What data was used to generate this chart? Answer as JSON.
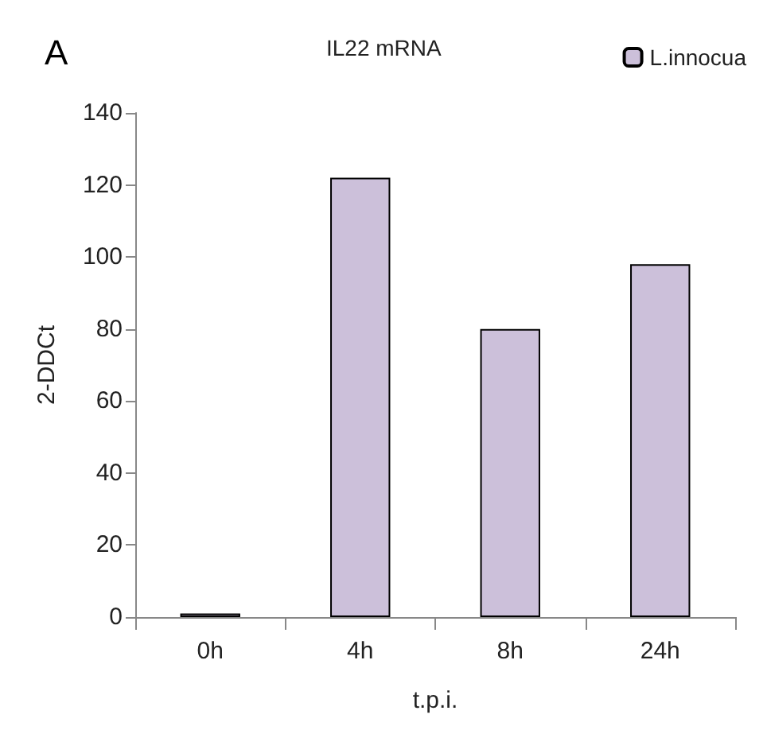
{
  "chart_data": {
    "type": "bar",
    "title": "IL22 mRNA",
    "xlabel": "t.p.i.",
    "ylabel": "2-DDCt",
    "annotations": [
      "A"
    ],
    "categories": [
      "0h",
      "4h",
      "8h",
      "24h"
    ],
    "series": [
      {
        "name": "L.innocua",
        "color": "#ccc0da",
        "values": [
          1,
          122,
          80,
          98
        ]
      }
    ],
    "ylim": [
      0,
      140
    ],
    "yticks": [
      0,
      20,
      40,
      60,
      80,
      100,
      120,
      140
    ],
    "grid": false,
    "legend": "top right"
  }
}
